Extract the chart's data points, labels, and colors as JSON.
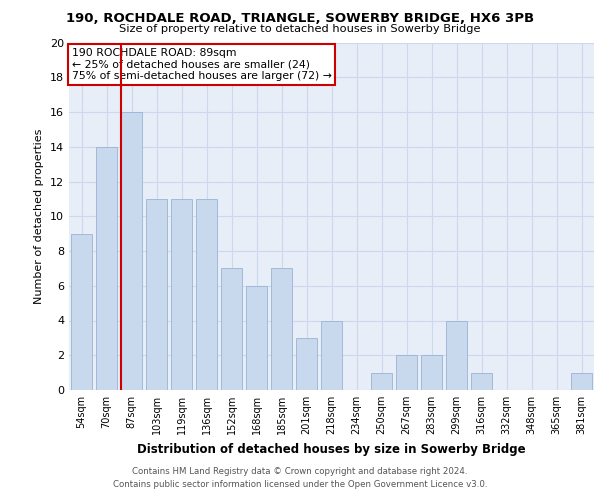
{
  "title_line1": "190, ROCHDALE ROAD, TRIANGLE, SOWERBY BRIDGE, HX6 3PB",
  "title_line2": "Size of property relative to detached houses in Sowerby Bridge",
  "xlabel": "Distribution of detached houses by size in Sowerby Bridge",
  "ylabel": "Number of detached properties",
  "categories": [
    "54sqm",
    "70sqm",
    "87sqm",
    "103sqm",
    "119sqm",
    "136sqm",
    "152sqm",
    "168sqm",
    "185sqm",
    "201sqm",
    "218sqm",
    "234sqm",
    "250sqm",
    "267sqm",
    "283sqm",
    "299sqm",
    "316sqm",
    "332sqm",
    "348sqm",
    "365sqm",
    "381sqm"
  ],
  "values": [
    9,
    14,
    16,
    11,
    11,
    11,
    7,
    6,
    7,
    3,
    4,
    0,
    1,
    2,
    2,
    4,
    1,
    0,
    0,
    0,
    1
  ],
  "bar_color": "#c8d9ee",
  "bar_edge_color": "#9ab4d4",
  "red_line_index": 2,
  "annotation_line1": "190 ROCHDALE ROAD: 89sqm",
  "annotation_line2": "← 25% of detached houses are smaller (24)",
  "annotation_line3": "75% of semi-detached houses are larger (72) →",
  "annotation_box_color": "#ffffff",
  "annotation_box_edge": "#cc0000",
  "ylim": [
    0,
    20
  ],
  "yticks": [
    0,
    2,
    4,
    6,
    8,
    10,
    12,
    14,
    16,
    18,
    20
  ],
  "footnote_line1": "Contains HM Land Registry data © Crown copyright and database right 2024.",
  "footnote_line2": "Contains public sector information licensed under the Open Government Licence v3.0.",
  "grid_color": "#cdd8ec",
  "background_color": "#e8eef8"
}
